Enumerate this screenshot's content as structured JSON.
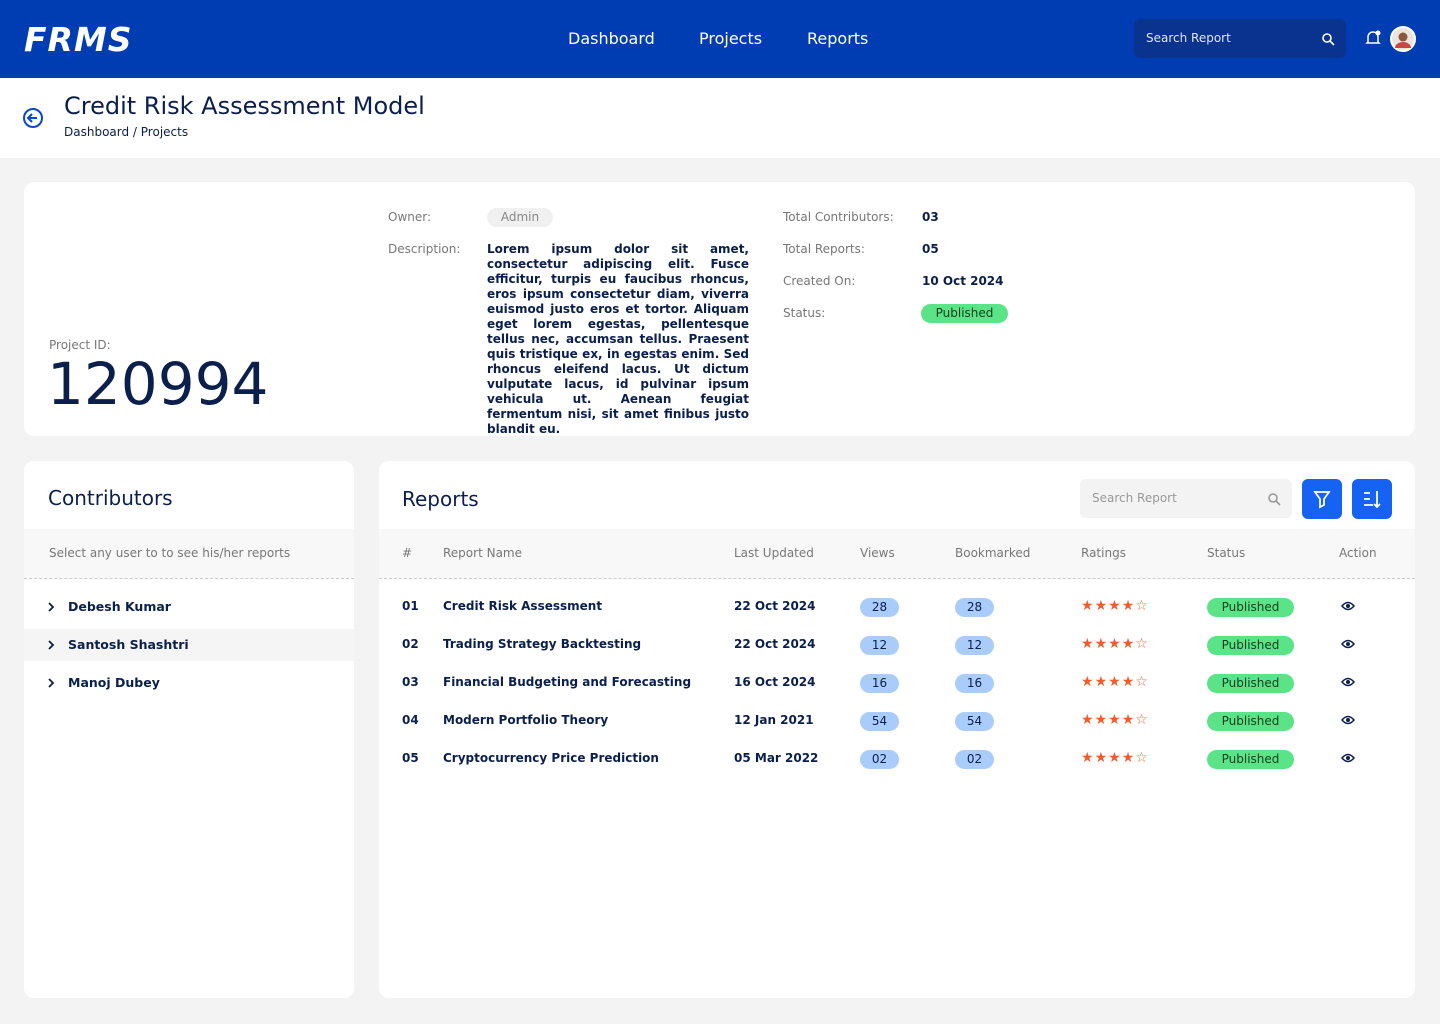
{
  "nav": {
    "logo": "FRMS",
    "links": [
      "Dashboard",
      "Projects",
      "Reports"
    ],
    "search_placeholder": "Search Report"
  },
  "page": {
    "title": "Credit Risk Assessment Model",
    "breadcrumb": "Dashboard / Projects"
  },
  "project": {
    "id_label": "Project ID:",
    "id": "120994",
    "owner_label": "Owner:",
    "owner": "Admin",
    "description_label": "Description:",
    "description": "Lorem ipsum dolor sit amet, consectetur adipiscing elit. Fusce efficitur, turpis eu faucibus rhoncus, eros ipsum consectetur diam, viverra euismod justo eros et tortor. Aliquam eget lorem egestas, pellentesque tellus nec, accumsan tellus. Praesent quis tristique ex, in egestas enim. Sed rhoncus eleifend lacus. Ut dictum vulputate lacus, id pulvinar ipsum vehicula ut. Aenean feugiat fermentum nisi, sit amet finibus justo blandit eu.",
    "stats": [
      {
        "label": "Total Contributors:",
        "value": "03"
      },
      {
        "label": "Total Reports:",
        "value": "05"
      },
      {
        "label": "Created On:",
        "value": "10 Oct 2024"
      },
      {
        "label": "Status:",
        "value": "Published"
      }
    ]
  },
  "contributors": {
    "title": "Contributors",
    "hint": "Select any user to to see his/her reports",
    "users": [
      "Debesh Kumar",
      "Santosh Shashtri",
      "Manoj Dubey"
    ]
  },
  "reports": {
    "title": "Reports",
    "search_placeholder": "Search Report",
    "columns": [
      "#",
      "Report Name",
      "Last Updated",
      "Views",
      "Bookmarked",
      "Ratings",
      "Status",
      "Action"
    ],
    "ratings_max": 5,
    "rows": [
      {
        "num": "01",
        "name": "Credit Risk Assessment",
        "updated": "22 Oct 2024",
        "views": "28",
        "bookmarked": "28",
        "rating": 4,
        "status": "Published"
      },
      {
        "num": "02",
        "name": "Trading Strategy Backtesting",
        "updated": "22 Oct 2024",
        "views": "12",
        "bookmarked": "12",
        "rating": 4,
        "status": "Published"
      },
      {
        "num": "03",
        "name": "Financial Budgeting and Forecasting",
        "updated": "16 Oct 2024",
        "views": "16",
        "bookmarked": "16",
        "rating": 4,
        "status": "Published"
      },
      {
        "num": "04",
        "name": "Modern Portfolio Theory",
        "updated": "12 Jan 2021",
        "views": "54",
        "bookmarked": "54",
        "rating": 4,
        "status": "Published"
      },
      {
        "num": "05",
        "name": "Cryptocurrency Price Prediction",
        "updated": "05 Mar 2022",
        "views": "02",
        "bookmarked": "02",
        "rating": 4,
        "status": "Published"
      }
    ]
  }
}
